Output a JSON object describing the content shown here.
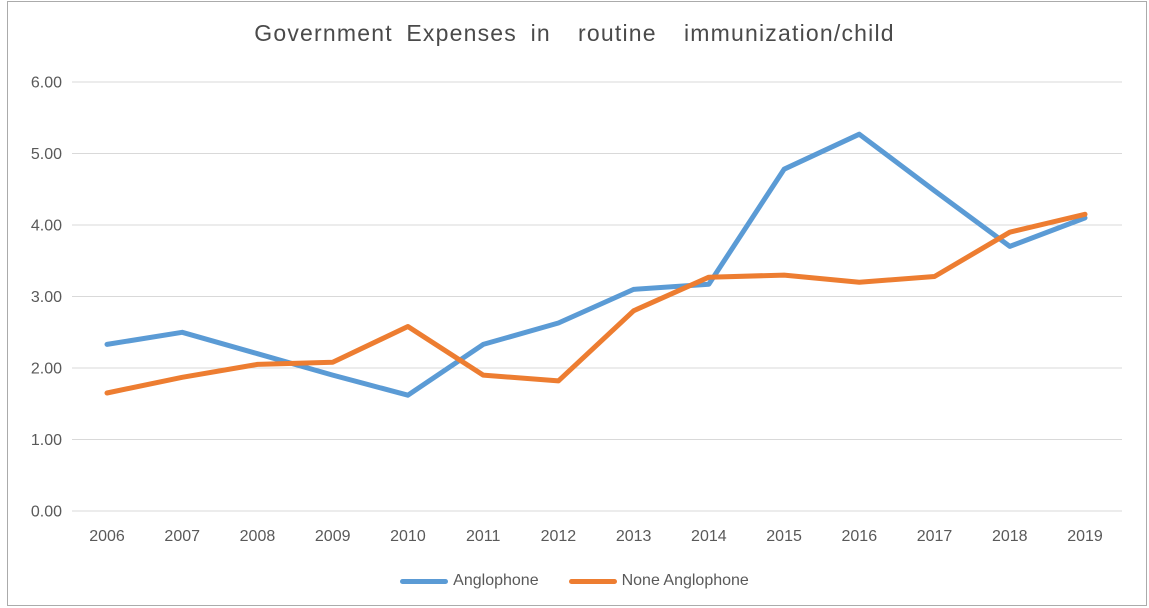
{
  "chart_data": {
    "type": "line",
    "title": "Government Expenses in  routine  immunization/child",
    "categories": [
      "2006",
      "2007",
      "2008",
      "2009",
      "2010",
      "2011",
      "2012",
      "2013",
      "2014",
      "2015",
      "2016",
      "2017",
      "2018",
      "2019"
    ],
    "series": [
      {
        "name": "Anglophone",
        "color": "#5B9BD5",
        "values": [
          2.33,
          2.5,
          2.2,
          1.9,
          1.62,
          2.33,
          2.63,
          3.1,
          3.17,
          4.78,
          5.27,
          4.48,
          3.7,
          4.1
        ]
      },
      {
        "name": "None Anglophone",
        "color": "#ED7D31",
        "values": [
          1.65,
          1.87,
          2.05,
          2.08,
          2.58,
          1.9,
          1.82,
          2.8,
          3.27,
          3.3,
          3.2,
          3.28,
          3.9,
          4.15
        ]
      }
    ],
    "xlabel": "",
    "ylabel": "",
    "ylim": [
      0,
      6
    ],
    "y_ticks": [
      "0.00",
      "1.00",
      "2.00",
      "3.00",
      "4.00",
      "5.00",
      "6.00"
    ],
    "grid": true,
    "legend_position": "bottom"
  },
  "style": {
    "grid_color": "#D9D9D9",
    "axis_text_color": "#595959",
    "tick_font_size": 16,
    "line_width": 5
  }
}
